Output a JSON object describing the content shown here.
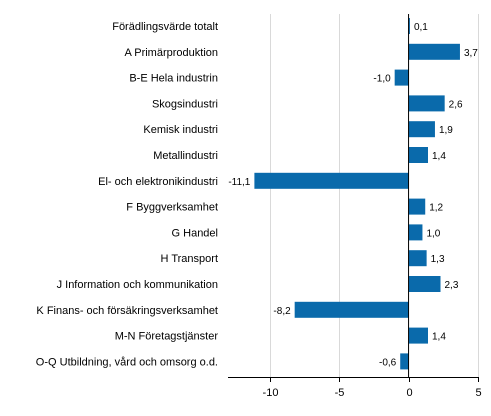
{
  "chart_data": {
    "type": "bar",
    "orientation": "horizontal",
    "title": "",
    "xlabel": "",
    "ylabel": "",
    "categories": [
      "Förädlingsvärde totalt",
      "A Primärproduktion",
      "B-E Hela industrin",
      "Skogsindustri",
      "Kemisk industri",
      "Metallindustri",
      "El- och elektronikindustri",
      "F Byggverksamhet",
      "G Handel",
      "H Transport",
      "J Information och kommunikation",
      "K Finans- och försäkringsverksamhet",
      "M-N Företagstjänster",
      "O-Q Utbildning, vård och omsorg o.d."
    ],
    "values": [
      0.1,
      3.7,
      -1.0,
      2.6,
      1.9,
      1.4,
      -11.1,
      1.2,
      1.0,
      1.3,
      2.3,
      -8.2,
      1.4,
      -0.6
    ],
    "value_labels": [
      "0,1",
      "3,7",
      "-1,0",
      "2,6",
      "1,9",
      "1,4",
      "-11,1",
      "1,2",
      "1,0",
      "1,3",
      "2,3",
      "-8,2",
      "1,4",
      "-0,6"
    ],
    "xlim": [
      -13,
      5
    ],
    "x_ticks": [
      -10,
      -5,
      0,
      5
    ],
    "x_tick_labels": [
      "-10",
      "-5",
      "0",
      "5"
    ],
    "grid": "vertical",
    "legend": "none",
    "bar_color": "#0a6aab",
    "grid_color": "#d9d9d9",
    "axis_color": "#000000"
  }
}
